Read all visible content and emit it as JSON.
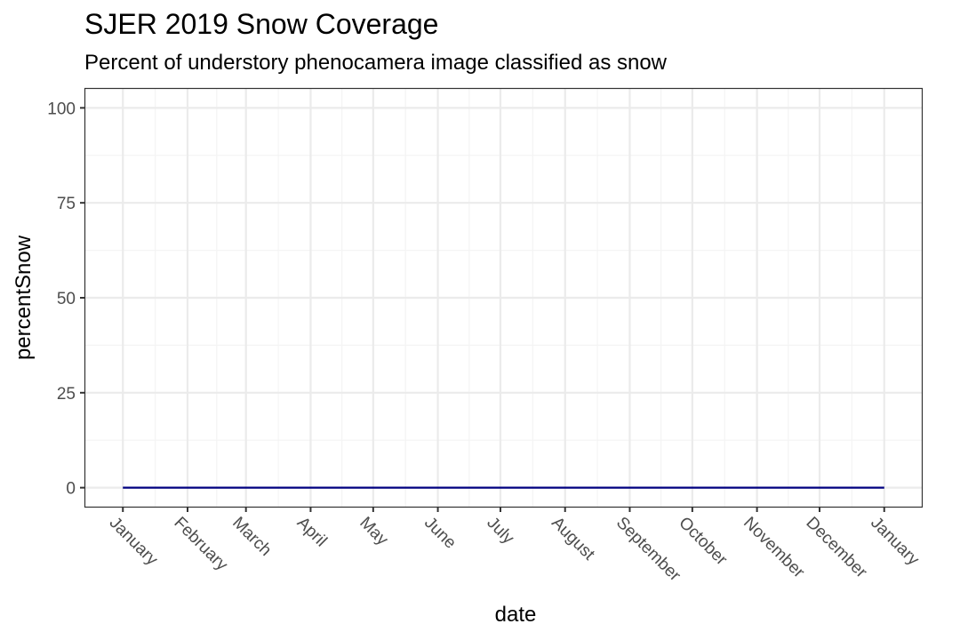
{
  "chart_data": {
    "type": "line",
    "title": "SJER 2019 Snow Coverage",
    "subtitle": "Percent of understory phenocamera image classified as snow",
    "xlabel": "date",
    "ylabel": "percentSnow",
    "x_tick_labels": [
      "January",
      "February",
      "March",
      "April",
      "May",
      "June",
      "July",
      "August",
      "September",
      "October",
      "November",
      "December",
      "January"
    ],
    "x_tick_dates": [
      "2019-01-01",
      "2019-02-01",
      "2019-03-01",
      "2019-04-01",
      "2019-05-01",
      "2019-06-01",
      "2019-07-01",
      "2019-08-01",
      "2019-09-01",
      "2019-10-01",
      "2019-11-01",
      "2019-12-01",
      "2020-01-01"
    ],
    "xlim": [
      "2018-12-14",
      "2020-01-19"
    ],
    "y_ticks": [
      0,
      25,
      50,
      75,
      100
    ],
    "ylim": [
      -5,
      105
    ],
    "grid": true,
    "series": [
      {
        "color": "#000080",
        "x": [
          "2019-01-01",
          "2020-01-01"
        ],
        "y": [
          0,
          0
        ]
      }
    ]
  },
  "colors": {
    "line": "#000080",
    "grid_major": "#ebebeb",
    "grid_minor": "#f4f4f4",
    "panel_border": "#333333",
    "tick_label": "#4d4d4d"
  }
}
